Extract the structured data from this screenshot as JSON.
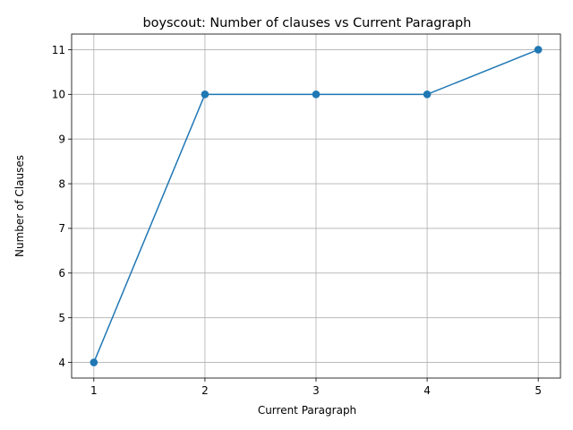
{
  "chart_data": {
    "type": "line",
    "title": "boyscout: Number of clauses vs Current Paragraph",
    "xlabel": "Current Paragraph",
    "ylabel": "Number of Clauses",
    "x": [
      1,
      2,
      3,
      4,
      5
    ],
    "series": [
      {
        "values": [
          4,
          10,
          10,
          10,
          11
        ],
        "color": "#1f77b4",
        "marker": "circle"
      }
    ],
    "xticks": [
      "1",
      "2",
      "3",
      "4",
      "5"
    ],
    "yticks": [
      "4",
      "5",
      "6",
      "7",
      "8",
      "9",
      "10",
      "11"
    ],
    "xlim": [
      0.8,
      5.2
    ],
    "ylim": [
      3.65,
      11.35
    ],
    "grid": true
  }
}
